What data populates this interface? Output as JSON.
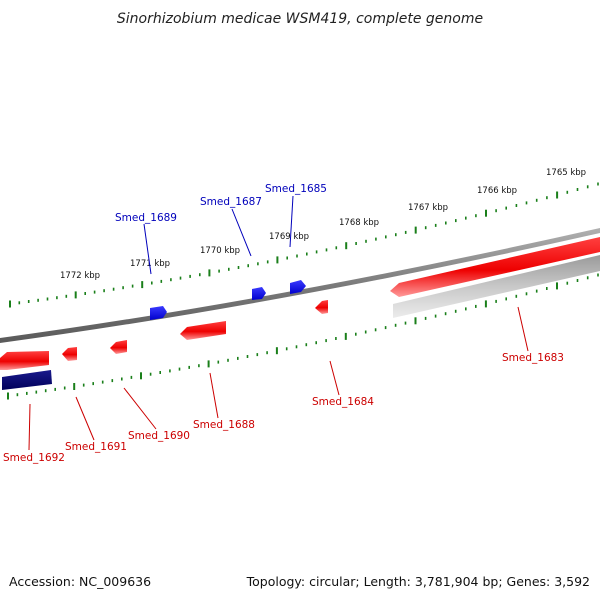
{
  "title": "Sinorhizobium medicae WSM419, complete genome",
  "footer": {
    "accession": "Accession: NC_009636",
    "summary": "Topology: circular; Length: 3,781,904 bp; Genes: 3,592"
  },
  "colors": {
    "forward_gene": "#ff0000",
    "reverse_gene": "#ff0000",
    "forward_label": "#0000bb",
    "reverse_label": "#cc0000",
    "backbone": "#808080",
    "scale_ticks": "#1a7f1a",
    "rna": "#0000ff",
    "other": "#000080",
    "pseudo": "#c8c8c8"
  },
  "scale_labels": [
    "1765 kbp",
    "1766 kbp",
    "1767 kbp",
    "1768 kbp",
    "1769 kbp",
    "1770 kbp",
    "1771 kbp",
    "1772 kbp"
  ],
  "gene_labels": {
    "forward": [
      "Smed_1685",
      "Smed_1687",
      "Smed_1689"
    ],
    "reverse": [
      "Smed_1683",
      "Smed_1684",
      "Smed_1688",
      "Smed_1690",
      "Smed_1691",
      "Smed_1692"
    ]
  }
}
